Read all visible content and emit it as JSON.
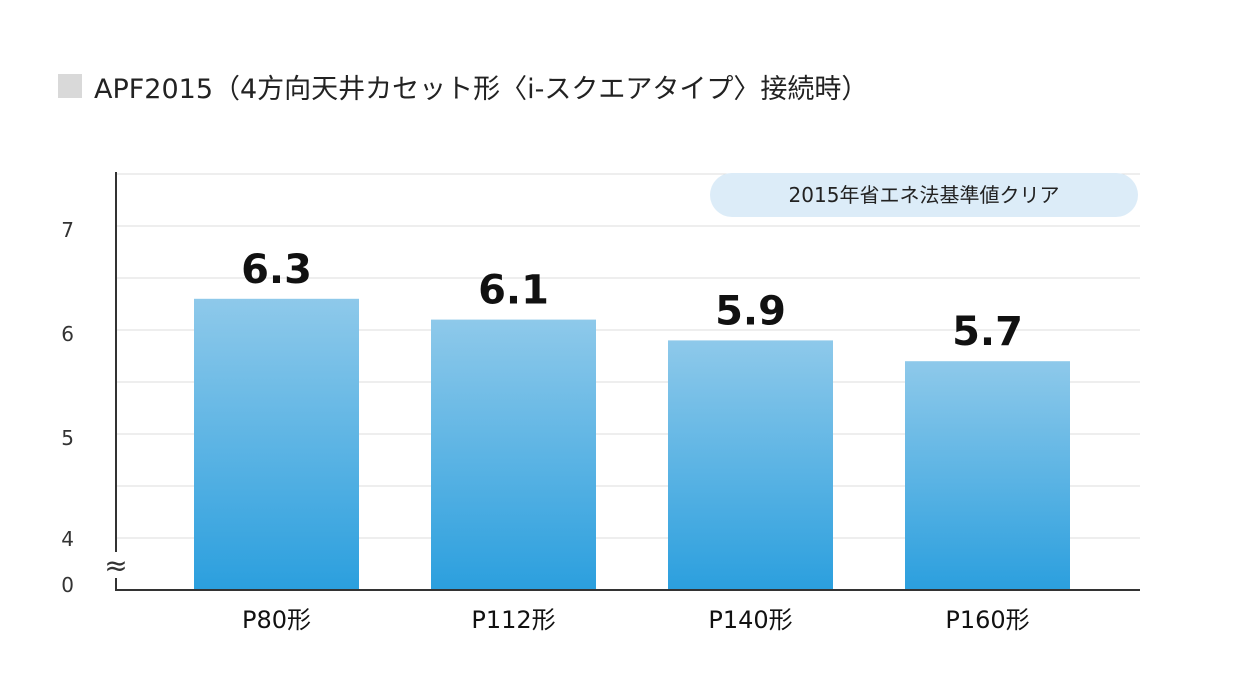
{
  "legend": {
    "swatch_color": "#d9d9d9",
    "label": "APF2015（4方向天井カセット形〈i-スクエアタイプ〉接続時）"
  },
  "badge": {
    "text": "2015年省エネ法基準値クリア",
    "background": "#dcecf8"
  },
  "colors": {
    "bar_top": "#8ec9ea",
    "bar_bottom": "#2b9fde",
    "grid": "#dddddd",
    "axis": "#333333"
  },
  "chart_data": {
    "type": "bar",
    "title": "APF2015（4方向天井カセット形〈i-スクエアタイプ〉接続時）",
    "categories": [
      "P80形",
      "P112形",
      "P140形",
      "P160形"
    ],
    "values": [
      6.3,
      6.1,
      5.9,
      5.7
    ],
    "value_labels": [
      "6.3",
      "6.1",
      "5.9",
      "5.7"
    ],
    "y_ticks": [
      "0",
      "4",
      "5",
      "6",
      "7"
    ],
    "y_axis_break": true,
    "break_symbol": "≈",
    "ylim": [
      4,
      7.5
    ],
    "grid": true
  }
}
